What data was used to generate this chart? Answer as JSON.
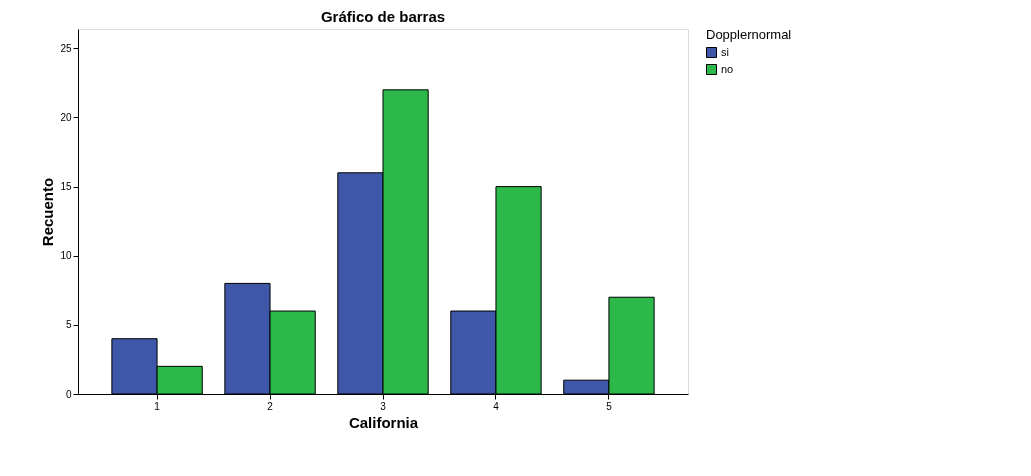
{
  "chart_data": {
    "type": "bar",
    "title": "Gráfico de barras",
    "xlabel": "California",
    "ylabel": "Recuento",
    "legend_title": "Dopplernormal",
    "categories": [
      "1",
      "2",
      "3",
      "4",
      "5"
    ],
    "series": [
      {
        "name": "si",
        "color": "#3f57a8",
        "values": [
          4,
          8,
          16,
          6,
          1
        ]
      },
      {
        "name": "no",
        "color": "#2db84a",
        "values": [
          2,
          6,
          22,
          15,
          7
        ]
      }
    ],
    "ylim": [
      0,
      26.4
    ],
    "yticks": [
      0,
      5,
      10,
      15,
      20,
      25
    ],
    "grid": false,
    "legend": "top right"
  }
}
